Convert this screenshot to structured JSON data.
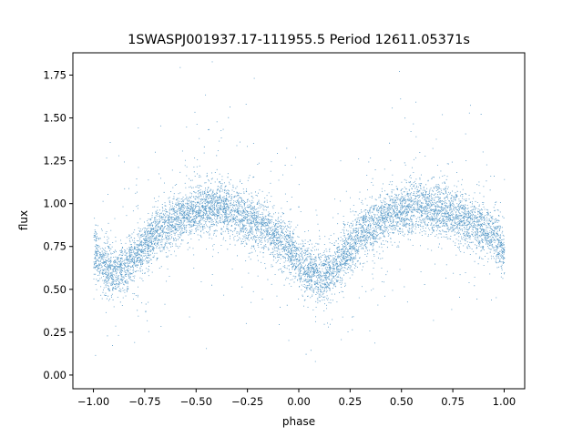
{
  "chart_data": {
    "type": "scatter",
    "title": "1SWASPJ001937.17-111955.5 Period 12611.05371s",
    "xlabel": "phase",
    "ylabel": "flux",
    "xlim": [
      -1.1,
      1.1
    ],
    "ylim": [
      -0.08,
      1.88
    ],
    "x_ticks": [
      "−1.00",
      "−0.75",
      "−0.50",
      "−0.25",
      "0.00",
      "0.25",
      "0.50",
      "0.75",
      "1.00"
    ],
    "y_ticks": [
      "0.00",
      "0.25",
      "0.50",
      "0.75",
      "1.00",
      "1.25",
      "1.50",
      "1.75"
    ],
    "grid": false,
    "series": [
      {
        "color": "#1f77b4",
        "points_count_approx": 9000,
        "x": [
          -1.0,
          -0.95,
          -0.9,
          -0.85,
          -0.8,
          -0.75,
          -0.7,
          -0.65,
          -0.6,
          -0.55,
          -0.5,
          -0.45,
          -0.4,
          -0.35,
          -0.3,
          -0.25,
          -0.2,
          -0.15,
          -0.1,
          -0.05,
          0.0,
          0.05,
          0.1,
          0.15,
          0.2,
          0.25,
          0.3,
          0.35,
          0.4,
          0.45,
          0.5,
          0.55,
          0.6,
          0.65,
          0.7,
          0.75,
          0.8,
          0.85,
          0.9,
          0.95,
          1.0
        ],
        "y": [
          0.72,
          0.64,
          0.6,
          0.63,
          0.68,
          0.76,
          0.83,
          0.87,
          0.91,
          0.94,
          0.96,
          0.98,
          0.98,
          0.97,
          0.95,
          0.92,
          0.88,
          0.85,
          0.8,
          0.74,
          0.66,
          0.61,
          0.58,
          0.61,
          0.66,
          0.74,
          0.82,
          0.87,
          0.91,
          0.94,
          0.96,
          0.98,
          0.99,
          0.98,
          0.96,
          0.94,
          0.91,
          0.88,
          0.85,
          0.82,
          0.72
        ]
      }
    ]
  }
}
